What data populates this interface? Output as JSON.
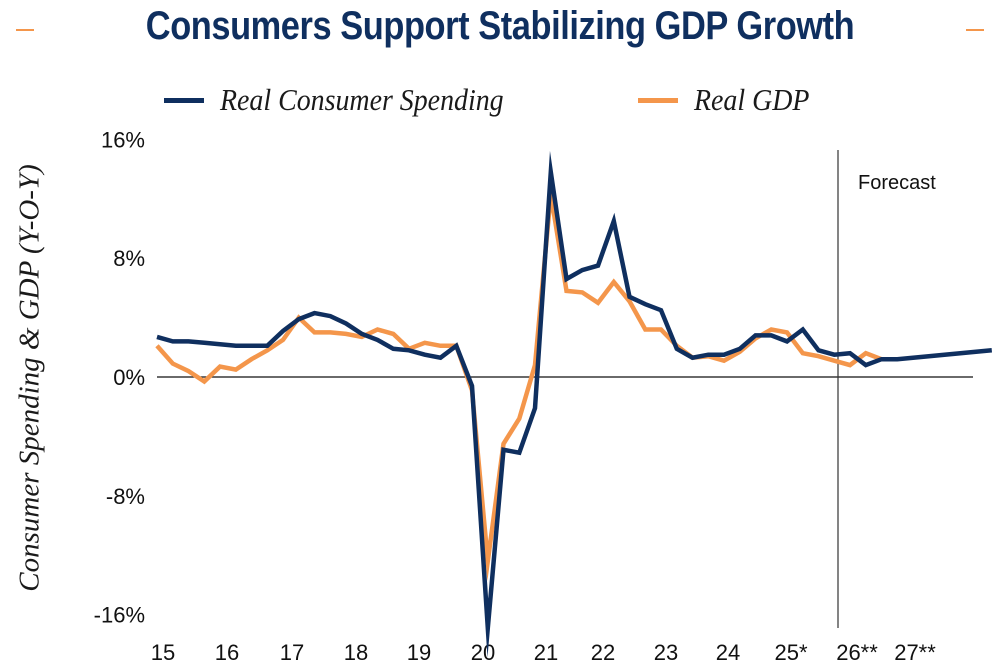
{
  "colors": {
    "title": "#0f2f5f",
    "consumer": "#0f2f5f",
    "gdp": "#f4964b",
    "accent_dash": "#f4964b",
    "axis": "#111111"
  },
  "chart_data": {
    "type": "line",
    "title": "Consumers Support Stabilizing GDP Growth",
    "xlabel": "",
    "ylabel": "Consumer Spending & GDP (Y-O-Y)",
    "ylim": [
      -16,
      16
    ],
    "y_ticks": [
      16,
      8,
      0,
      -8,
      -16
    ],
    "y_tick_labels": [
      "16%",
      "8%",
      "0%",
      "-8%",
      "-16%"
    ],
    "x_tick_labels": [
      "15",
      "16",
      "17",
      "18",
      "19",
      "20",
      "21",
      "22",
      "23",
      "24",
      "25*",
      "26**",
      "27**"
    ],
    "x_start_year": 2015,
    "frequency": "quarterly",
    "grid": false,
    "legend_position": "top",
    "annotations": [
      {
        "text": "Forecast",
        "x_quarter_index": 45
      }
    ],
    "series": [
      {
        "name": "Real Consumer Spending",
        "values": [
          2.7,
          2.4,
          2.4,
          2.3,
          2.2,
          2.1,
          2.1,
          2.1,
          3.1,
          3.9,
          4.3,
          4.1,
          3.6,
          2.9,
          2.5,
          1.9,
          1.8,
          1.5,
          1.3,
          2.1,
          -0.6,
          -16.9,
          -4.9,
          -5.1,
          -2.1,
          13.8,
          6.6,
          7.2,
          7.5,
          10.5,
          5.4,
          4.9,
          4.5,
          1.9,
          1.3,
          1.5,
          1.5,
          1.9,
          2.8,
          2.8,
          2.4,
          3.2,
          1.8,
          1.5,
          1.6,
          0.8,
          1.2,
          1.2,
          1.3,
          1.4,
          1.5,
          1.6,
          1.7,
          1.8
        ]
      },
      {
        "name": "Real GDP",
        "values": [
          2.1,
          0.9,
          0.4,
          -0.3,
          0.7,
          0.5,
          1.2,
          1.8,
          2.5,
          4.0,
          3.0,
          3.0,
          2.9,
          2.7,
          3.2,
          2.9,
          1.9,
          2.3,
          2.1,
          2.1,
          -0.9,
          -12.4,
          -4.5,
          -2.8,
          0.8,
          12.3,
          5.8,
          5.7,
          5.0,
          6.4,
          5.1,
          3.2,
          3.2,
          2.1,
          1.3,
          1.4,
          1.1,
          1.7,
          2.6,
          3.2,
          3.0,
          1.6,
          1.4,
          1.1,
          0.8,
          1.6,
          1.2,
          1.2
        ]
      }
    ]
  }
}
